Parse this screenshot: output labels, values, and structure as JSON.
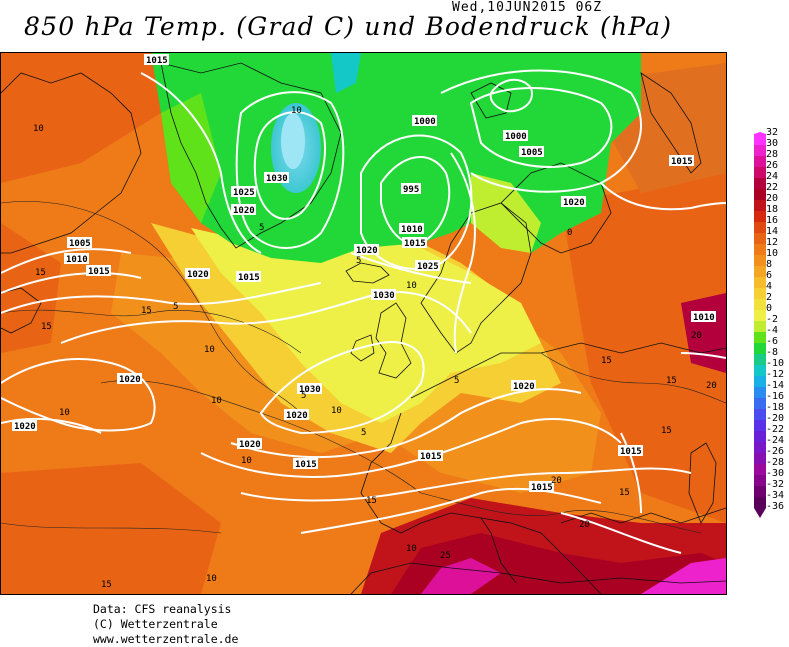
{
  "header": {
    "title": "850 hPa Temp. (Grad C) und Bodendruck (hPa)",
    "valid_time": "Wed,10JUN2015 06Z"
  },
  "footer": {
    "line1": "Data: CFS reanalysis",
    "line2": "(C) Wetterzentrale",
    "line3": "www.wetterzentrale.de"
  },
  "colorbar": {
    "labels": [
      "32",
      "30",
      "28",
      "26",
      "24",
      "22",
      "20",
      "18",
      "16",
      "14",
      "12",
      "10",
      "8",
      "6",
      "4",
      "2",
      "0",
      "-2",
      "-4",
      "-6",
      "-8",
      "-10",
      "-12",
      "-14",
      "-16",
      "-18",
      "-20",
      "-22",
      "-24",
      "-26",
      "-28",
      "-30",
      "-32",
      "-34",
      "-36"
    ],
    "colors": [
      "#ff33ff",
      "#ee22cc",
      "#dd1199",
      "#cc0a6a",
      "#b3003c",
      "#aa0022",
      "#c0141a",
      "#d62a10",
      "#e04a12",
      "#e86414",
      "#ee7a18",
      "#f2901c",
      "#f5a524",
      "#f7bb2c",
      "#f5cf34",
      "#f2e03c",
      "#eef048",
      "#bfee30",
      "#5fe21a",
      "#22d838",
      "#18cc88",
      "#14c8c8",
      "#18b0e6",
      "#2a8cf0",
      "#3a6cf2",
      "#4a4cf0",
      "#5a30e8",
      "#6a20d8",
      "#7818c8",
      "#8810b0",
      "#9a0aa0",
      "#88048a",
      "#700070",
      "#58005a"
    ]
  },
  "map": {
    "isobars": [
      {
        "value": "1015"
      },
      {
        "value": "1020"
      },
      {
        "value": "1025"
      },
      {
        "value": "1030"
      },
      {
        "value": "1030"
      },
      {
        "value": "1025"
      },
      {
        "value": "1020"
      },
      {
        "value": "1015"
      },
      {
        "value": "1010"
      },
      {
        "value": "1005"
      },
      {
        "value": "1000"
      },
      {
        "value": "995"
      },
      {
        "value": "1000"
      },
      {
        "value": "1005"
      },
      {
        "value": "1010"
      },
      {
        "value": "1015"
      },
      {
        "value": "1020"
      },
      {
        "value": "1025"
      },
      {
        "value": "1030"
      },
      {
        "value": "1020"
      },
      {
        "value": "1020"
      },
      {
        "value": "1015"
      },
      {
        "value": "1015"
      },
      {
        "value": "1015"
      },
      {
        "value": "1015"
      },
      {
        "value": "1015"
      },
      {
        "value": "1020"
      },
      {
        "value": "1010"
      },
      {
        "value": "1020"
      },
      {
        "value": "1020"
      },
      {
        "value": "1005"
      },
      {
        "value": "1010"
      },
      {
        "value": "1015"
      },
      {
        "value": "1020"
      }
    ],
    "temperature_labels": [
      {
        "value": "10"
      },
      {
        "value": "15"
      },
      {
        "value": "5"
      },
      {
        "value": "10"
      },
      {
        "value": "15"
      },
      {
        "value": "20"
      },
      {
        "value": "15"
      },
      {
        "value": "10"
      },
      {
        "value": "5"
      },
      {
        "value": "5"
      },
      {
        "value": "10"
      },
      {
        "value": "15"
      },
      {
        "value": "20"
      },
      {
        "value": "25"
      },
      {
        "value": "15"
      },
      {
        "value": "10"
      },
      {
        "value": "15"
      },
      {
        "value": "5"
      },
      {
        "value": "0"
      },
      {
        "value": "10"
      },
      {
        "value": "5"
      },
      {
        "value": "15"
      },
      {
        "value": "20"
      },
      {
        "value": "15"
      },
      {
        "value": "10"
      },
      {
        "value": "15"
      },
      {
        "value": "10"
      },
      {
        "value": "5"
      },
      {
        "value": "10"
      },
      {
        "value": "10"
      },
      {
        "value": "20"
      }
    ]
  }
}
